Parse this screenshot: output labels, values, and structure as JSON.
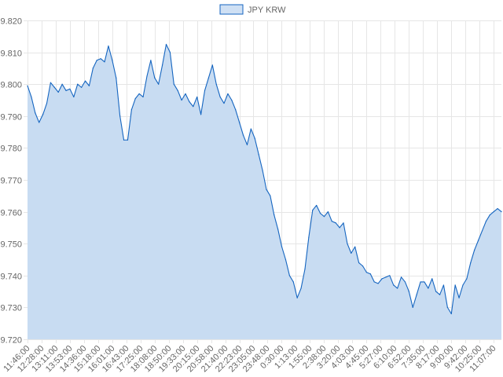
{
  "chart_data": {
    "type": "area",
    "legend": {
      "position": "top",
      "entries": [
        "JPY KRW"
      ]
    },
    "colors": {
      "line": "#1565c0",
      "fill": "#c8dcf2",
      "legend_fill": "#cfe0f4",
      "grid": "#e6e6e6",
      "text": "#666666"
    },
    "grid": true,
    "ylim": [
      9.72,
      9.82
    ],
    "y_ticks": [
      "9.820",
      "9.810",
      "9.800",
      "9.790",
      "9.780",
      "9.770",
      "9.760",
      "9.750",
      "9.740",
      "9.730",
      "9.720"
    ],
    "x_ticks": [
      "11:46:00",
      "12:28:00",
      "13:11:00",
      "13:53:00",
      "14:36:00",
      "15:18:00",
      "16:01:00",
      "16:43:00",
      "17:25:00",
      "18:08:00",
      "18:50:00",
      "19:33:00",
      "20:15:00",
      "20:58:00",
      "21:40:00",
      "22:23:00",
      "23:05:00",
      "23:48:00",
      "0:30:00",
      "1:13:00",
      "1:55:00",
      "2:38:00",
      "3:20:00",
      "4:03:00",
      "4:45:00",
      "5:27:00",
      "6:10:00",
      "6:52:00",
      "7:35:00",
      "8:17:00",
      "9:00:00",
      "9:42:00",
      "10:25:00",
      "11:07:00"
    ],
    "series": [
      {
        "name": "JPY KRW",
        "x_start": "11:46:00",
        "values": [
          9.7995,
          9.796,
          9.791,
          9.788,
          9.7905,
          9.794,
          9.8005,
          9.799,
          9.7975,
          9.8,
          9.798,
          9.7985,
          9.796,
          9.8,
          9.799,
          9.801,
          9.7995,
          9.805,
          9.8075,
          9.808,
          9.807,
          9.812,
          9.8075,
          9.802,
          9.79,
          9.7825,
          9.7825,
          9.792,
          9.7955,
          9.797,
          9.796,
          9.8025,
          9.8075,
          9.802,
          9.8,
          9.806,
          9.8125,
          9.81,
          9.8,
          9.798,
          9.795,
          9.797,
          9.7945,
          9.793,
          9.796,
          9.7905,
          9.798,
          9.802,
          9.806,
          9.8,
          9.796,
          9.794,
          9.797,
          9.795,
          9.792,
          9.788,
          9.784,
          9.781,
          9.786,
          9.783,
          9.778,
          9.773,
          9.767,
          9.765,
          9.759,
          9.7545,
          9.749,
          9.745,
          9.74,
          9.738,
          9.733,
          9.736,
          9.742,
          9.752,
          9.7605,
          9.762,
          9.7595,
          9.7585,
          9.76,
          9.757,
          9.7565,
          9.755,
          9.7565,
          9.75,
          9.747,
          9.749,
          9.744,
          9.743,
          9.741,
          9.7405,
          9.738,
          9.7375,
          9.739,
          9.7395,
          9.74,
          9.737,
          9.736,
          9.7395,
          9.738,
          9.735,
          9.73,
          9.734,
          9.738,
          9.738,
          9.736,
          9.739,
          9.735,
          9.734,
          9.737,
          9.73,
          9.728,
          9.737,
          9.733,
          9.737,
          9.739,
          9.744,
          9.748,
          9.751,
          9.754,
          9.757,
          9.759,
          9.76,
          9.761,
          9.76
        ]
      }
    ]
  }
}
